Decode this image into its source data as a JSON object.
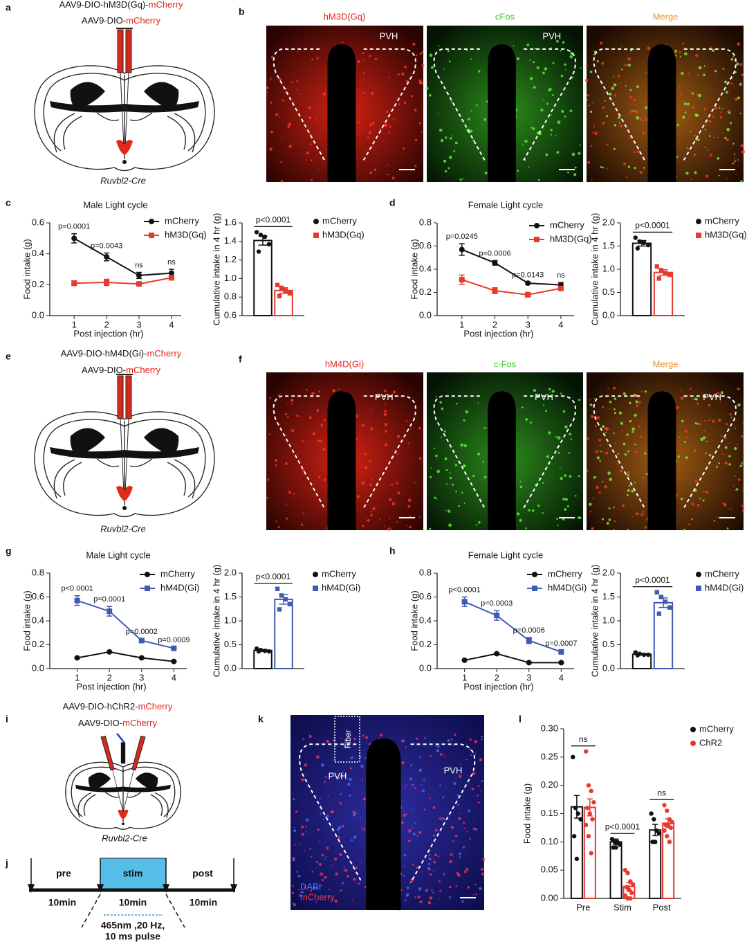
{
  "panel_labels": [
    "a",
    "b",
    "c",
    "d",
    "e",
    "f",
    "g",
    "h",
    "i",
    "j",
    "k",
    "l"
  ],
  "a": {
    "vectors": [
      [
        "AAV9-DIO-hM3D(Gq)-",
        "mCherry"
      ],
      [
        "AAV9-DIO-",
        "mCherry"
      ]
    ],
    "mouse_line": "Ruvbl2-Cre"
  },
  "b": {
    "channels": [
      "hM3D(Gq)",
      "cFos",
      "Merge"
    ],
    "region": "PVH"
  },
  "e": {
    "vectors": [
      [
        "AAV9-DIO-hM4D(Gi)-",
        "mCherry"
      ],
      [
        "AAV9-DIO-",
        "mCherry"
      ]
    ],
    "mouse_line": "Ruvbl2-Cre"
  },
  "f": {
    "channels": [
      "hM4D(Gi)",
      "c-Fos",
      "Merge"
    ],
    "region": "PVH"
  },
  "i": {
    "vectors": [
      [
        "AAV9-DIO-hChR2-",
        "mCherry"
      ],
      [
        "AAV9-DIO-",
        "mCherry"
      ]
    ],
    "mouse_line": "Ruvbl2-Cre"
  },
  "j": {
    "phases": [
      "pre",
      "stim",
      "post"
    ],
    "durations": [
      "10min",
      "10min",
      "10min"
    ],
    "stimulus": [
      "465nm ,20 Hz,",
      "10 ms pulse"
    ]
  },
  "k": {
    "fiber": "Fiber",
    "region": "PVH",
    "stains": [
      "DAPI",
      "mCherry"
    ]
  },
  "chart_data": [
    {
      "type": "line",
      "title": "Male  Light cycle",
      "x_label": "Post injection (hr)",
      "y_label": "Food intake (g)",
      "x": [
        1,
        2,
        3,
        4
      ],
      "xlim": [
        0.25,
        4.3
      ],
      "xticks": [
        1,
        2,
        3,
        4
      ],
      "ylim": [
        0,
        0.6
      ],
      "yticks": [
        {
          "value": 0,
          "label": "0.0"
        },
        0.2,
        0.4,
        0.6
      ],
      "series": [
        {
          "name": "mCherry",
          "color": "#111111",
          "marker": "circle",
          "values": [
            0.5,
            0.38,
            0.26,
            0.275
          ],
          "errors": [
            0.03,
            0.025,
            0.02,
            0.025
          ]
        },
        {
          "name": "hM3D(Gq)",
          "color": "#e8392d",
          "marker": "square",
          "values": [
            0.21,
            0.215,
            0.205,
            0.245
          ],
          "errors": [
            0.015,
            0.02,
            0.01,
            0.015
          ]
        }
      ],
      "p_values": [
        "p=0.0001",
        "p=0.0043",
        "ns",
        "ns"
      ]
    },
    {
      "type": "bar",
      "y_label": "Cumulative intake in 4 hr (g)",
      "ylim": [
        0.6,
        1.6
      ],
      "yticks": [
        0.6,
        0.8,
        {
          "value": 1,
          "label": "1.0"
        },
        1.2,
        1.4,
        1.6
      ],
      "series": [
        {
          "name": "mCherry",
          "color": "#111111",
          "marker": "circle",
          "values": [
            1.41
          ],
          "errors": [
            0.05
          ],
          "points": [
            [
              1.5,
              1.47,
              1.45,
              1.37,
              1.29
            ]
          ]
        },
        {
          "name": "hM3D(Gq)",
          "color": "#e8392d",
          "marker": "square",
          "values": [
            0.87
          ],
          "errors": [
            0.03
          ],
          "points": [
            [
              0.93,
              0.9,
              0.87,
              0.84,
              0.81
            ]
          ]
        }
      ],
      "comparisons": [
        "p<0.0001"
      ]
    },
    {
      "type": "line",
      "title": "Female  Light cycle",
      "x_label": "Post injection (hr)",
      "y_label": "Food intake (g)",
      "x": [
        1,
        2,
        3,
        4
      ],
      "xlim": [
        0.25,
        4.4
      ],
      "xticks": [
        1,
        2,
        3,
        4
      ],
      "ylim": [
        0,
        0.8
      ],
      "yticks": [
        {
          "value": 0,
          "label": "0.0"
        },
        0.2,
        0.4,
        0.6,
        0.8
      ],
      "series": [
        {
          "name": "mCherry",
          "color": "#111111",
          "marker": "circle",
          "values": [
            0.57,
            0.455,
            0.28,
            0.265
          ],
          "errors": [
            0.05,
            0.02,
            0.01,
            0.02
          ]
        },
        {
          "name": "hM3D(Gq)",
          "color": "#e8392d",
          "marker": "square",
          "values": [
            0.31,
            0.215,
            0.18,
            0.235
          ],
          "errors": [
            0.04,
            0.025,
            0.02,
            0.01
          ]
        }
      ],
      "p_values": [
        "p=0.0245",
        "p=0.0006",
        "p=0.0143",
        "ns"
      ]
    },
    {
      "type": "bar",
      "y_label": "Cumulative intake in 4 hr (g)",
      "ylim": [
        0,
        2
      ],
      "yticks": [
        {
          "value": 0,
          "label": "0.0"
        },
        0.5,
        {
          "value": 1,
          "label": "1.0"
        },
        1.5,
        {
          "value": 2,
          "label": "2.0"
        }
      ],
      "series": [
        {
          "name": "mCherry",
          "color": "#111111",
          "marker": "circle",
          "values": [
            1.56
          ],
          "errors": [
            0.06
          ],
          "points": [
            [
              1.68,
              1.6,
              1.57,
              1.52,
              1.45
            ]
          ]
        },
        {
          "name": "hM3D(Gq)",
          "color": "#e8392d",
          "marker": "square",
          "values": [
            0.93
          ],
          "errors": [
            0.06
          ],
          "points": [
            [
              1.06,
              0.98,
              0.92,
              0.88,
              0.8
            ]
          ]
        }
      ],
      "comparisons": [
        "p<0.0001"
      ]
    },
    {
      "type": "line",
      "title": "Male  Light cycle",
      "x_label": "Post injection (hr)",
      "y_label": "Food intake (g)",
      "x": [
        1,
        2,
        3,
        4
      ],
      "xlim": [
        0.15,
        4.4
      ],
      "xticks": [
        1,
        2,
        3,
        4
      ],
      "ylim": [
        0,
        0.8
      ],
      "yticks": [
        {
          "value": 0,
          "label": "0.0"
        },
        0.2,
        0.4,
        0.6,
        0.8
      ],
      "series": [
        {
          "name": "mCherry",
          "color": "#111111",
          "marker": "circle",
          "values": [
            0.09,
            0.14,
            0.09,
            0.06
          ],
          "errors": [
            0.005,
            0.005,
            0.005,
            0.005
          ]
        },
        {
          "name": "hM4D(Gi)",
          "color": "#3f5bb0",
          "marker": "square",
          "values": [
            0.57,
            0.48,
            0.235,
            0.17
          ],
          "errors": [
            0.04,
            0.04,
            0.015,
            0.01
          ]
        }
      ],
      "p_values": [
        "p<0.0001",
        "p=0.0001",
        "p=0.0002",
        "p=0.0009"
      ]
    },
    {
      "type": "bar",
      "y_label": "Cumulative intake in 4 hr (g)",
      "ylim": [
        0,
        2
      ],
      "yticks": [
        {
          "value": 0,
          "label": "0.0"
        },
        0.5,
        {
          "value": 1,
          "label": "1.0"
        },
        1.5,
        {
          "value": 2,
          "label": "2.0"
        }
      ],
      "series": [
        {
          "name": "mCherry",
          "color": "#111111",
          "marker": "circle",
          "values": [
            0.38
          ],
          "errors": [
            0.02
          ],
          "points": [
            [
              0.42,
              0.39,
              0.37,
              0.36,
              0.36
            ]
          ]
        },
        {
          "name": "hM4D(Gi)",
          "color": "#3f5bb0",
          "marker": "square",
          "values": [
            1.45
          ],
          "errors": [
            0.1
          ],
          "points": [
            [
              1.67,
              1.53,
              1.45,
              1.35,
              1.24
            ]
          ]
        }
      ],
      "comparisons": [
        "p<0.0001"
      ]
    },
    {
      "type": "line",
      "title": "Female  Light cycle",
      "x_label": "Post injection (hr)",
      "y_label": "Food intake (g)",
      "x": [
        1,
        2,
        3,
        4
      ],
      "xlim": [
        0.15,
        4.4
      ],
      "xticks": [
        1,
        2,
        3,
        4
      ],
      "ylim": [
        0,
        0.8
      ],
      "yticks": [
        {
          "value": 0,
          "label": "0.0"
        },
        0.2,
        0.4,
        0.6,
        0.8
      ],
      "series": [
        {
          "name": "mCherry",
          "color": "#111111",
          "marker": "circle",
          "values": [
            0.07,
            0.125,
            0.05,
            0.05
          ],
          "errors": [
            0.005,
            0.005,
            0.005,
            0.005
          ]
        },
        {
          "name": "hM4D(Gi)",
          "color": "#3f5bb0",
          "marker": "square",
          "values": [
            0.56,
            0.445,
            0.235,
            0.14
          ],
          "errors": [
            0.04,
            0.04,
            0.025,
            0.01
          ]
        }
      ],
      "p_values": [
        "p<0.0001",
        "p=0.0003",
        "p=0.0006",
        "p=0.0007"
      ]
    },
    {
      "type": "bar",
      "y_label": "Cumulative intake in 4 hr (g)",
      "ylim": [
        0,
        2
      ],
      "yticks": [
        {
          "value": 0,
          "label": "0.0"
        },
        0.5,
        {
          "value": 1,
          "label": "1.0"
        },
        1.5,
        {
          "value": 2,
          "label": "2.0"
        }
      ],
      "series": [
        {
          "name": "mCherry",
          "color": "#111111",
          "marker": "circle",
          "values": [
            0.3
          ],
          "errors": [
            0.015
          ],
          "points": [
            [
              0.34,
              0.31,
              0.29,
              0.29,
              0.28
            ]
          ]
        },
        {
          "name": "hM4D(Gi)",
          "color": "#3f5bb0",
          "marker": "square",
          "values": [
            1.38
          ],
          "errors": [
            0.1
          ],
          "points": [
            [
              1.6,
              1.5,
              1.4,
              1.28,
              1.15
            ]
          ]
        }
      ],
      "comparisons": [
        "p<0.0001"
      ]
    },
    {
      "type": "bar",
      "y_label": "Food intake (g)",
      "categories": [
        "Pre",
        "Stim",
        "Post"
      ],
      "ylim": [
        0,
        0.3
      ],
      "yticks": [
        {
          "value": 0,
          "label": "0.00"
        },
        {
          "value": 0.05,
          "label": "0.05"
        },
        {
          "value": 0.1,
          "label": "0.10"
        },
        {
          "value": 0.15,
          "label": "0.15"
        },
        {
          "value": 0.2,
          "label": "0.20"
        },
        {
          "value": 0.25,
          "label": "0.25"
        },
        {
          "value": 0.3,
          "label": "0.30"
        }
      ],
      "series": [
        {
          "name": "mCherry",
          "color": "#111111",
          "marker": "circle",
          "values": [
            0.162,
            0.1,
            0.121
          ],
          "errors": [
            0.02,
            0.005,
            0.01
          ],
          "points": [
            [
              0.25,
              0.16,
              0.15,
              0.14,
              0.11,
              0.07
            ],
            [
              0.105,
              0.1,
              0.1,
              0.095,
              0.09,
              0.09
            ],
            [
              0.15,
              0.14,
              0.12,
              0.115,
              0.1,
              0.1
            ]
          ]
        },
        {
          "name": "ChR2",
          "color": "#e8392d",
          "marker": "circle",
          "values": [
            0.161,
            0.021,
            0.133
          ],
          "errors": [
            0.015,
            0.007,
            0.008
          ],
          "points": [
            [
              0.26,
              0.2,
              0.19,
              0.17,
              0.16,
              0.15,
              0.14,
              0.13,
              0.11,
              0.08
            ],
            [
              0.05,
              0.045,
              0.03,
              0.025,
              0.02,
              0.015,
              0.01,
              0.005,
              0,
              0
            ],
            [
              0.165,
              0.155,
              0.14,
              0.135,
              0.13,
              0.13,
              0.125,
              0.12,
              0.11,
              0.1
            ]
          ]
        }
      ],
      "comparisons": [
        "ns",
        "p<0.0001",
        "ns"
      ]
    }
  ]
}
